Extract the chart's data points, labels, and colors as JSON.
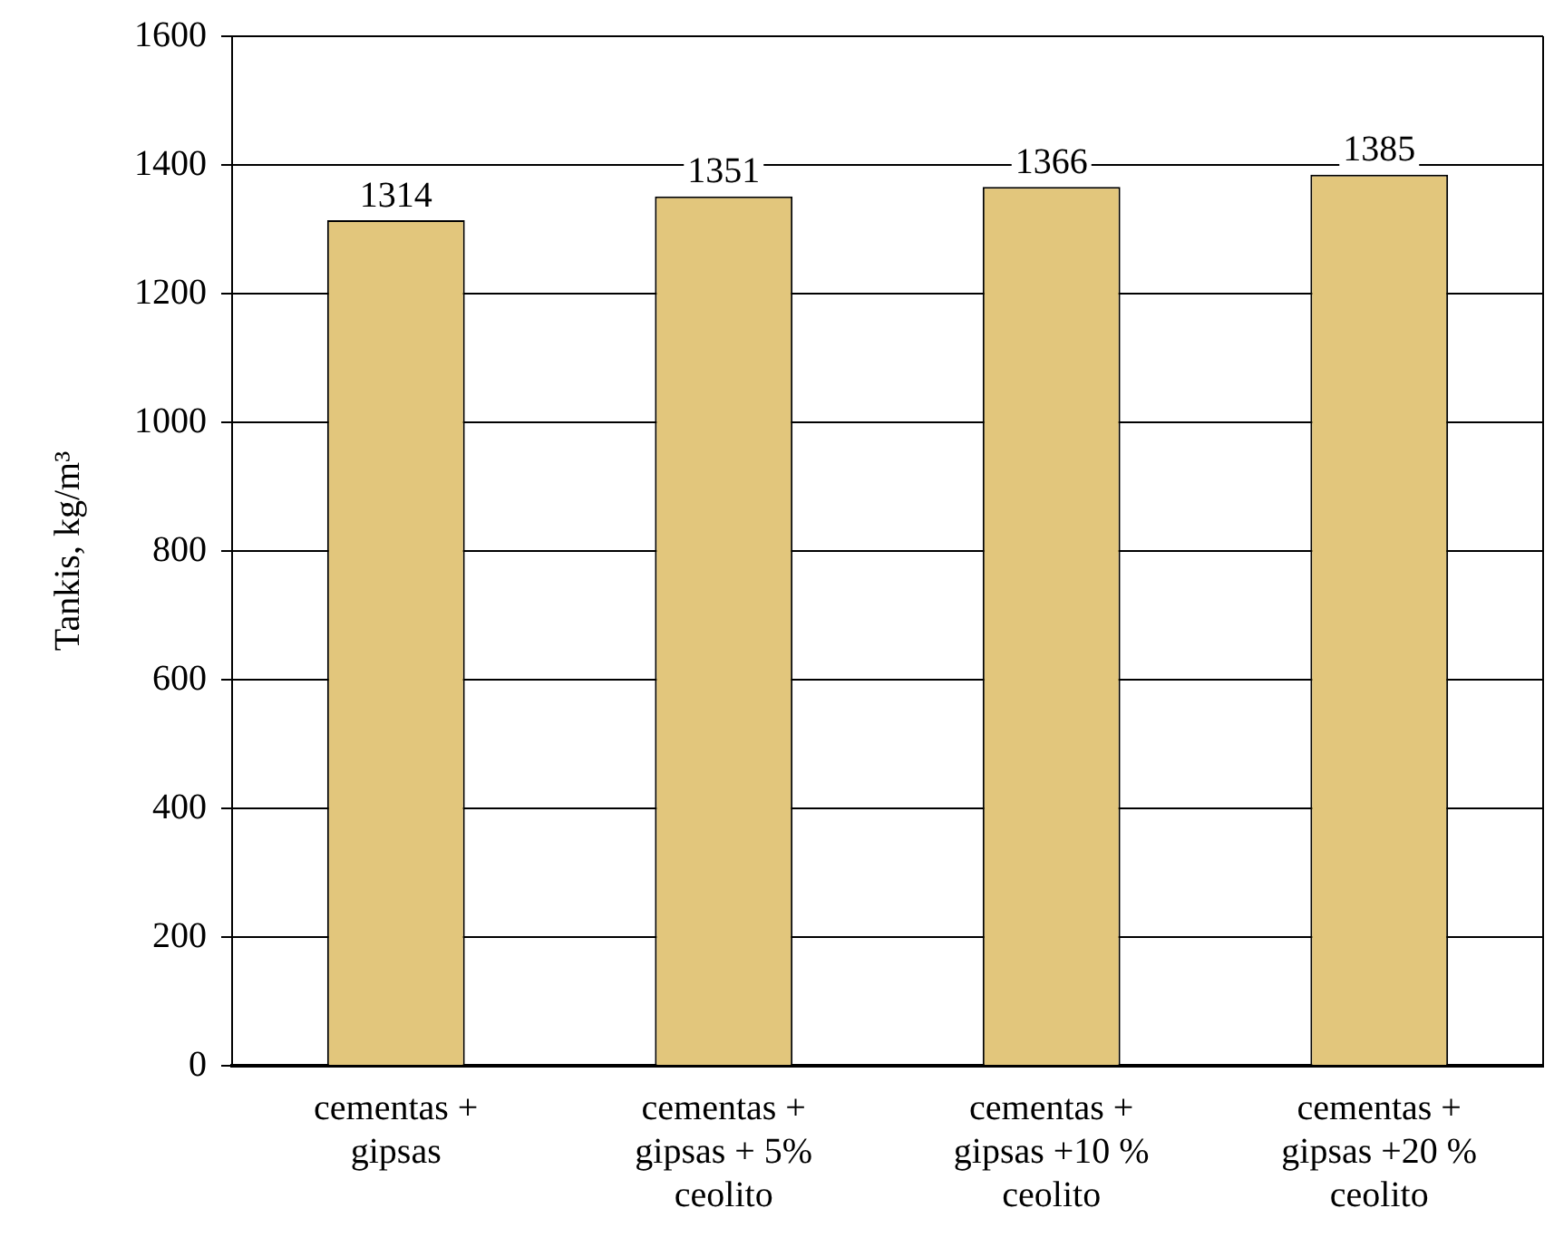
{
  "chart_data": {
    "type": "bar",
    "ylabel": "Tankis, kg/m³",
    "categories": [
      "cementas + gipsas",
      "cementas + gipsas + 5% ceolito",
      "cementas + gipsas +10 % ceolito",
      "cementas + gipsas +20 % ceolito"
    ],
    "values": [
      1314,
      1351,
      1366,
      1385
    ],
    "color": "#e2c67c",
    "ylim": [
      0,
      1600
    ],
    "yticks": [
      0,
      200,
      400,
      600,
      800,
      1000,
      1200,
      1400,
      1600
    ],
    "grid": "y",
    "data_labels": true
  }
}
